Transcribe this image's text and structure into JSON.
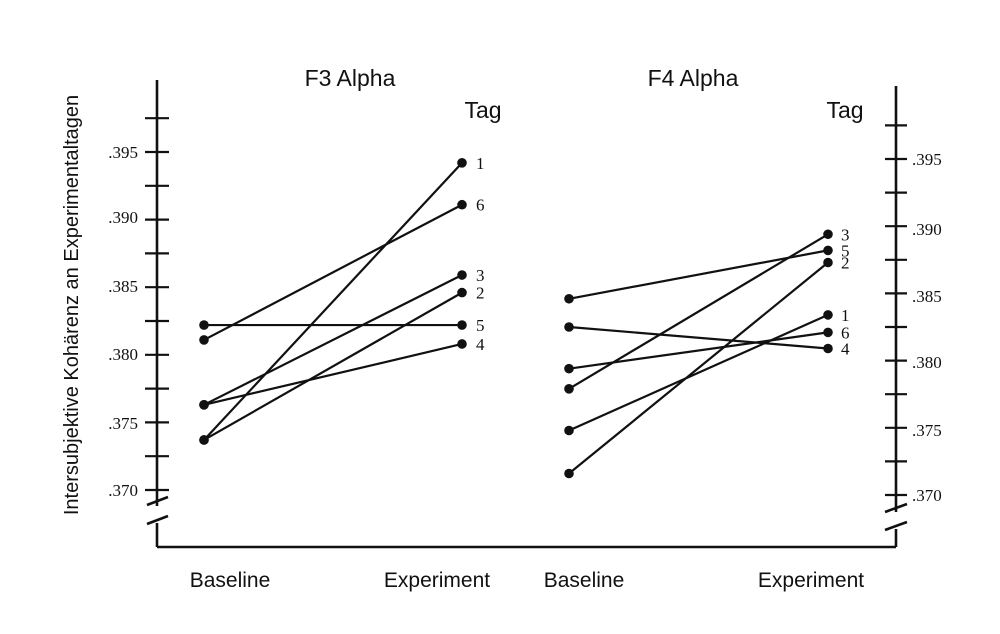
{
  "figure": {
    "y_axis_label": "Intersubjektive Kohärenz an Experimentaltagen"
  },
  "chart_data": [
    {
      "type": "line",
      "title": "F3 Alpha",
      "legend_title": "Tag",
      "categories": [
        "Baseline",
        "Experiment"
      ],
      "ylim": [
        0.365,
        0.4
      ],
      "yticks": [
        ".395",
        ".390",
        ".385",
        ".380",
        ".375",
        ".370"
      ],
      "series": [
        {
          "name": "1",
          "values": [
            0.3737,
            0.3942
          ]
        },
        {
          "name": "6",
          "values": [
            0.3811,
            0.3911
          ]
        },
        {
          "name": "3",
          "values": [
            0.3763,
            0.3859
          ]
        },
        {
          "name": "2",
          "values": [
            0.3737,
            0.3846
          ]
        },
        {
          "name": "5",
          "values": [
            0.3822,
            0.3822
          ]
        },
        {
          "name": "4",
          "values": [
            0.3763,
            0.3808
          ]
        }
      ]
    },
    {
      "type": "line",
      "title": "F4 Alpha",
      "legend_title": "Tag",
      "categories": [
        "Baseline",
        "Experiment"
      ],
      "ylim": [
        0.365,
        0.4
      ],
      "yticks": [
        ".395",
        ".390",
        ".385",
        ".380",
        ".375",
        ".370"
      ],
      "series": [
        {
          "name": "3",
          "values": [
            0.3779,
            0.3894
          ]
        },
        {
          "name": "5",
          "values": [
            0.3846,
            0.3882
          ]
        },
        {
          "name": "2",
          "values": [
            0.3716,
            0.3873
          ]
        },
        {
          "name": "1",
          "values": [
            0.3748,
            0.3834
          ]
        },
        {
          "name": "6",
          "values": [
            0.3794,
            0.3821
          ]
        },
        {
          "name": "4",
          "values": [
            0.3825,
            0.3809
          ]
        }
      ]
    }
  ]
}
